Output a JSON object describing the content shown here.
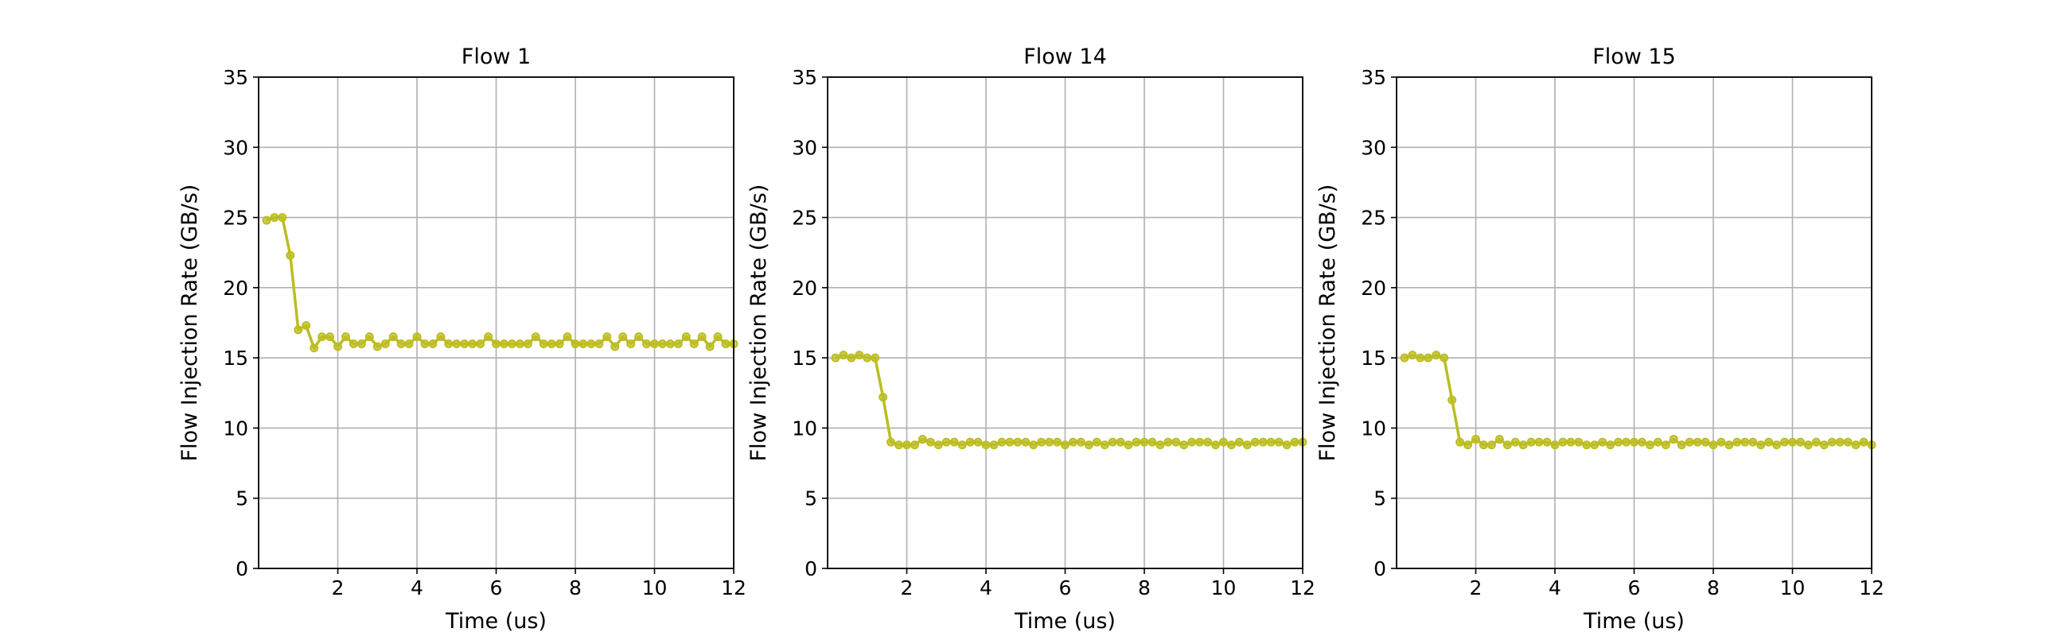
{
  "chart_data": [
    {
      "type": "line",
      "title": "Flow 1",
      "xlabel": "Time (us)",
      "ylabel": "Flow Injection Rate (GB/s)",
      "xlim": [
        0,
        12
      ],
      "ylim": [
        0,
        35
      ],
      "xticks": [
        2,
        4,
        6,
        8,
        10,
        12
      ],
      "yticks": [
        0,
        5,
        10,
        15,
        20,
        25,
        30,
        35
      ],
      "grid": true,
      "series": [
        {
          "color": "#bcbd22",
          "marker": "circle",
          "x": [
            0.2,
            0.4,
            0.6,
            0.8,
            1.0,
            1.2,
            1.4,
            1.6,
            1.8,
            2.0,
            2.2,
            2.4,
            2.6,
            2.8,
            3.0,
            3.2,
            3.4,
            3.6,
            3.8,
            4.0,
            4.2,
            4.4,
            4.6,
            4.8,
            5.0,
            5.2,
            5.4,
            5.6,
            5.8,
            6.0,
            6.2,
            6.4,
            6.6,
            6.8,
            7.0,
            7.2,
            7.4,
            7.6,
            7.8,
            8.0,
            8.2,
            8.4,
            8.6,
            8.8,
            9.0,
            9.2,
            9.4,
            9.6,
            9.8,
            10.0,
            10.2,
            10.4,
            10.6,
            10.8,
            11.0,
            11.2,
            11.4,
            11.6,
            11.8,
            12.0
          ],
          "values": [
            24.8,
            25.0,
            25.0,
            22.3,
            17.0,
            17.3,
            15.7,
            16.5,
            16.5,
            15.8,
            16.5,
            16.0,
            16.0,
            16.5,
            15.8,
            16.0,
            16.5,
            16.0,
            16.0,
            16.5,
            16.0,
            16.0,
            16.5,
            16.0,
            16.0,
            16.0,
            16.0,
            16.0,
            16.5,
            16.0,
            16.0,
            16.0,
            16.0,
            16.0,
            16.5,
            16.0,
            16.0,
            16.0,
            16.5,
            16.0,
            16.0,
            16.0,
            16.0,
            16.5,
            15.8,
            16.5,
            16.0,
            16.5,
            16.0,
            16.0,
            16.0,
            16.0,
            16.0,
            16.5,
            16.0,
            16.5,
            15.8,
            16.5,
            16.0,
            16.0
          ]
        }
      ]
    },
    {
      "type": "line",
      "title": "Flow 14",
      "xlabel": "Time (us)",
      "ylabel": "Flow Injection Rate (GB/s)",
      "xlim": [
        0,
        12
      ],
      "ylim": [
        0,
        35
      ],
      "xticks": [
        2,
        4,
        6,
        8,
        10,
        12
      ],
      "yticks": [
        0,
        5,
        10,
        15,
        20,
        25,
        30,
        35
      ],
      "grid": true,
      "series": [
        {
          "color": "#bcbd22",
          "marker": "circle",
          "x": [
            0.2,
            0.4,
            0.6,
            0.8,
            1.0,
            1.2,
            1.4,
            1.6,
            1.8,
            2.0,
            2.2,
            2.4,
            2.6,
            2.8,
            3.0,
            3.2,
            3.4,
            3.6,
            3.8,
            4.0,
            4.2,
            4.4,
            4.6,
            4.8,
            5.0,
            5.2,
            5.4,
            5.6,
            5.8,
            6.0,
            6.2,
            6.4,
            6.6,
            6.8,
            7.0,
            7.2,
            7.4,
            7.6,
            7.8,
            8.0,
            8.2,
            8.4,
            8.6,
            8.8,
            9.0,
            9.2,
            9.4,
            9.6,
            9.8,
            10.0,
            10.2,
            10.4,
            10.6,
            10.8,
            11.0,
            11.2,
            11.4,
            11.6,
            11.8,
            12.0
          ],
          "values": [
            15.0,
            15.2,
            15.0,
            15.2,
            15.0,
            15.0,
            12.2,
            9.0,
            8.8,
            8.8,
            8.8,
            9.2,
            9.0,
            8.8,
            9.0,
            9.0,
            8.8,
            9.0,
            9.0,
            8.8,
            8.8,
            9.0,
            9.0,
            9.0,
            9.0,
            8.8,
            9.0,
            9.0,
            9.0,
            8.8,
            9.0,
            9.0,
            8.8,
            9.0,
            8.8,
            9.0,
            9.0,
            8.8,
            9.0,
            9.0,
            9.0,
            8.8,
            9.0,
            9.0,
            8.8,
            9.0,
            9.0,
            9.0,
            8.8,
            9.0,
            8.8,
            9.0,
            8.8,
            9.0,
            9.0,
            9.0,
            9.0,
            8.8,
            9.0,
            9.0
          ]
        }
      ]
    },
    {
      "type": "line",
      "title": "Flow 15",
      "xlabel": "Time (us)",
      "ylabel": "Flow Injection Rate (GB/s)",
      "xlim": [
        0,
        12
      ],
      "ylim": [
        0,
        35
      ],
      "xticks": [
        2,
        4,
        6,
        8,
        10,
        12
      ],
      "yticks": [
        0,
        5,
        10,
        15,
        20,
        25,
        30,
        35
      ],
      "grid": true,
      "series": [
        {
          "color": "#bcbd22",
          "marker": "circle",
          "x": [
            0.2,
            0.4,
            0.6,
            0.8,
            1.0,
            1.2,
            1.4,
            1.6,
            1.8,
            2.0,
            2.2,
            2.4,
            2.6,
            2.8,
            3.0,
            3.2,
            3.4,
            3.6,
            3.8,
            4.0,
            4.2,
            4.4,
            4.6,
            4.8,
            5.0,
            5.2,
            5.4,
            5.6,
            5.8,
            6.0,
            6.2,
            6.4,
            6.6,
            6.8,
            7.0,
            7.2,
            7.4,
            7.6,
            7.8,
            8.0,
            8.2,
            8.4,
            8.6,
            8.8,
            9.0,
            9.2,
            9.4,
            9.6,
            9.8,
            10.0,
            10.2,
            10.4,
            10.6,
            10.8,
            11.0,
            11.2,
            11.4,
            11.6,
            11.8,
            12.0
          ],
          "values": [
            15.0,
            15.2,
            15.0,
            15.0,
            15.2,
            15.0,
            12.0,
            9.0,
            8.8,
            9.2,
            8.8,
            8.8,
            9.2,
            8.8,
            9.0,
            8.8,
            9.0,
            9.0,
            9.0,
            8.8,
            9.0,
            9.0,
            9.0,
            8.8,
            8.8,
            9.0,
            8.8,
            9.0,
            9.0,
            9.0,
            9.0,
            8.8,
            9.0,
            8.8,
            9.2,
            8.8,
            9.0,
            9.0,
            9.0,
            8.8,
            9.0,
            8.8,
            9.0,
            9.0,
            9.0,
            8.8,
            9.0,
            8.8,
            9.0,
            9.0,
            9.0,
            8.8,
            9.0,
            8.8,
            9.0,
            9.0,
            9.0,
            8.8,
            9.0,
            8.8
          ]
        }
      ]
    }
  ]
}
